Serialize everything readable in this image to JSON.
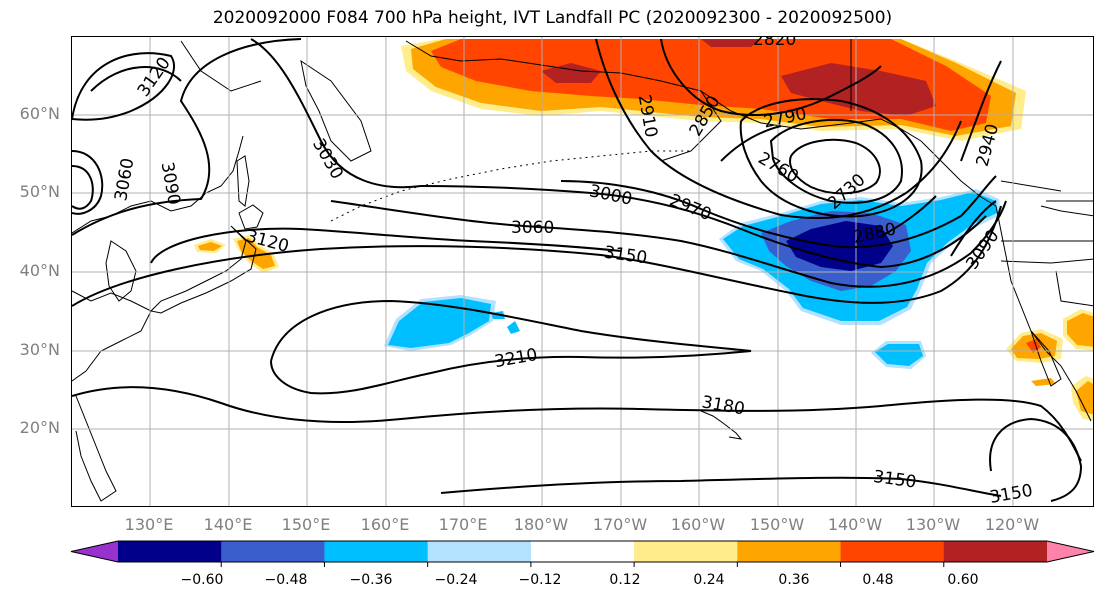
{
  "title": "2020092000 F084 700 hPa height, IVT Landfall PC (2020092300 - 2020092500)",
  "lat_labels": [
    "60°N",
    "50°N",
    "40°N",
    "30°N",
    "20°N"
  ],
  "lon_labels": [
    "130°E",
    "140°E",
    "150°E",
    "160°E",
    "170°E",
    "180°W",
    "170°W",
    "160°W",
    "150°W",
    "140°W",
    "130°W",
    "120°W"
  ],
  "contour_labels": [
    "3120",
    "3060",
    "3090",
    "3030",
    "3120",
    "3060",
    "3150",
    "3000",
    "2970",
    "2910",
    "2850",
    "2820",
    "2790",
    "2760",
    "2730",
    "2880",
    "2940",
    "3090",
    "3210",
    "3180",
    "3150",
    "3150"
  ],
  "colorbar": {
    "ticks": [
      "−0.60",
      "−0.48",
      "−0.36",
      "−0.24",
      "−0.12",
      "0.12",
      "0.24",
      "0.36",
      "0.48",
      "0.60"
    ],
    "colors": [
      "#9932cc",
      "#00008b",
      "#3a5fcd",
      "#00bfff",
      "#b2e2ff",
      "#ffffff",
      "#ffec8b",
      "#ffa500",
      "#ff4500",
      "#b22222",
      "#ff82ab"
    ]
  }
}
